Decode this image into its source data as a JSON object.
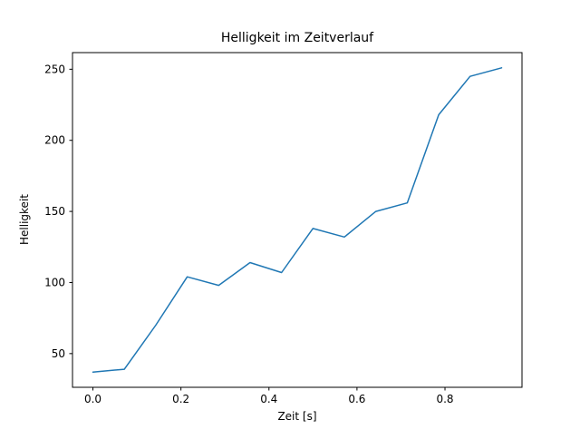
{
  "chart_data": {
    "type": "line",
    "title": "Helligkeit im Zeitverlauf",
    "xlabel": "Zeit [s]",
    "ylabel": "Helligkeit",
    "x": [
      0.0,
      0.0714,
      0.1429,
      0.2143,
      0.2857,
      0.3571,
      0.4286,
      0.5,
      0.5714,
      0.6429,
      0.7143,
      0.7857,
      0.8571,
      0.9286
    ],
    "y": [
      37,
      39,
      70,
      104,
      98,
      114,
      107,
      138,
      132,
      150,
      156,
      218,
      245,
      251
    ],
    "xlim": [
      -0.0464,
      0.975
    ],
    "ylim": [
      26.3,
      261.7
    ],
    "xticks": [
      0.0,
      0.2,
      0.4,
      0.6,
      0.8
    ],
    "xtick_labels": [
      "0.0",
      "0.2",
      "0.4",
      "0.6",
      "0.8"
    ],
    "yticks": [
      50,
      100,
      150,
      200,
      250
    ],
    "ytick_labels": [
      "50",
      "100",
      "150",
      "200",
      "250"
    ],
    "line_color": "#1f77b4",
    "spine_color": "#000000",
    "background_color": "#ffffff",
    "grid": false,
    "legend": null
  }
}
